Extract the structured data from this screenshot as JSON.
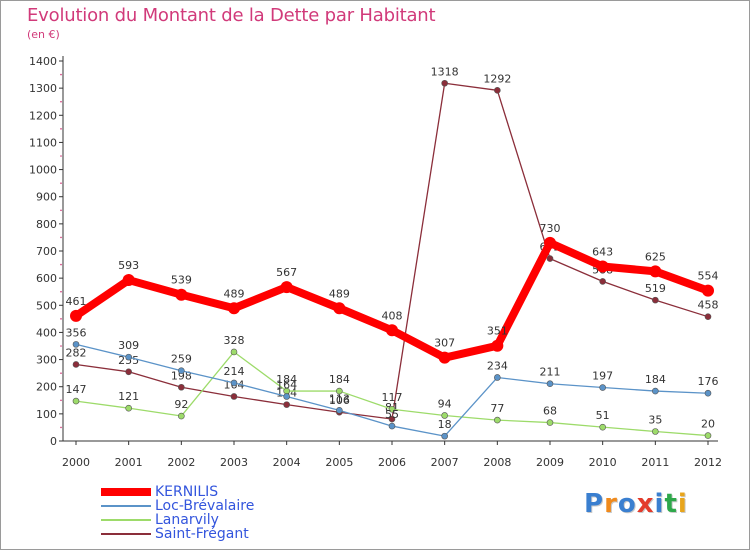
{
  "title": "Evolution du Montant de la Dette par Habitant",
  "subtitle": "(en €)",
  "logo_text": "Proxiti",
  "logo_colors": [
    "#3a7fd0",
    "#f08a1c",
    "#3a7fd0",
    "#e33b2b",
    "#3a7fd0",
    "#2ea84a",
    "#e8a51c"
  ],
  "chart_data": {
    "type": "line",
    "title": "Evolution du Montant de la Dette par Habitant",
    "subtitle": "(en €)",
    "x": [
      "2000",
      "2001",
      "2002",
      "2003",
      "2004",
      "2005",
      "2006",
      "2007",
      "2008",
      "2009",
      "2010",
      "2011",
      "2012"
    ],
    "ylim": [
      0,
      1400
    ],
    "yticks": [
      0,
      100,
      200,
      300,
      400,
      500,
      600,
      700,
      800,
      900,
      1000,
      1100,
      1200,
      1300,
      1400
    ],
    "grid": false,
    "legend_position": "bottom-left",
    "series": [
      {
        "name": "KERNILIS",
        "color": "#ff0000",
        "values": [
          461,
          593,
          539,
          489,
          567,
          489,
          408,
          307,
          351,
          730,
          643,
          625,
          554
        ],
        "labels": [
          "461",
          "593",
          "539",
          "489",
          "567",
          "489",
          "408",
          "307",
          "351",
          "730",
          "643",
          "625",
          "554"
        ]
      },
      {
        "name": "Loc-Brévalaire",
        "color": "#5b93c8",
        "values": [
          356,
          309,
          259,
          214,
          164,
          113,
          55,
          18,
          234,
          211,
          197,
          184,
          176
        ],
        "labels": [
          "356",
          "309",
          "259",
          "214",
          "164",
          "113",
          "55",
          "18",
          "234",
          "211",
          "197",
          "184",
          "176"
        ]
      },
      {
        "name": "Lanarvily",
        "color": "#9ddb6a",
        "values": [
          147,
          121,
          92,
          328,
          184,
          184,
          117,
          94,
          77,
          68,
          51,
          35,
          20
        ],
        "labels": [
          "147",
          "121",
          "92",
          "328",
          "184",
          "184",
          "117",
          "94",
          "77",
          "68",
          "51",
          "35",
          "20"
        ]
      },
      {
        "name": "Saint-Frégant",
        "color": "#8b2e3a",
        "values": [
          282,
          255,
          198,
          164,
          134,
          106,
          81,
          1318,
          1292,
          672,
          588,
          519,
          458
        ],
        "labels": [
          "282",
          "255",
          "198",
          "164",
          "134",
          "106",
          "81",
          "1318",
          "1292",
          "672",
          "588",
          "519",
          "458"
        ]
      }
    ]
  }
}
